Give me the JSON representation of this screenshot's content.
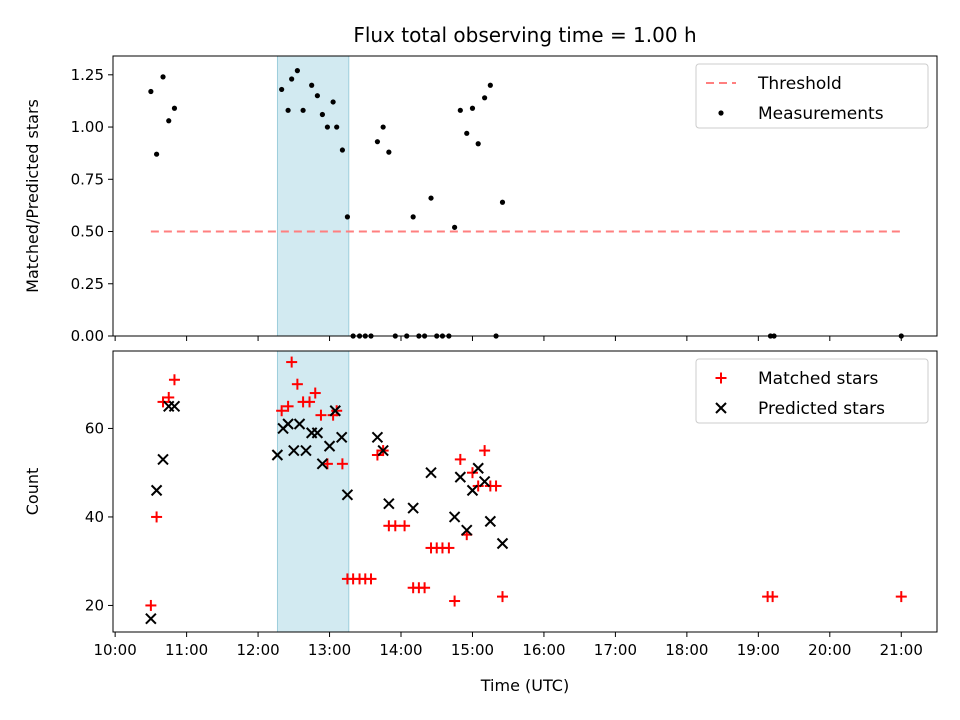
{
  "chart_data": {
    "type": "scatter",
    "title": "Flux total observing time = 1.00 h",
    "xlabel": "Time (UTC)",
    "x_tick_labels": [
      "10:00",
      "11:00",
      "12:00",
      "13:00",
      "14:00",
      "15:00",
      "16:00",
      "17:00",
      "18:00",
      "19:00",
      "20:00",
      "21:00"
    ],
    "x_ticks_hours": [
      10,
      11,
      12,
      13,
      14,
      15,
      16,
      17,
      18,
      19,
      20,
      21
    ],
    "xlim_hours": [
      9.97,
      21.5
    ],
    "highlight_span_hours": [
      12.27,
      13.27
    ],
    "colors": {
      "highlight": "#add8e6",
      "threshold": "#ff7f7f",
      "matched": "#ff0000",
      "predicted": "#000000",
      "measurement": "#000000"
    },
    "panels": [
      {
        "ylabel": "Matched/Predicted stars",
        "ylim": [
          0,
          1.34
        ],
        "y_ticks": [
          0,
          0.25,
          0.5,
          0.75,
          1.0,
          1.25
        ],
        "y_tick_labels": [
          "0.00",
          "0.25",
          "0.50",
          "0.75",
          "1.00",
          "1.25"
        ],
        "legend": {
          "placement": "top-right",
          "entries": [
            "Threshold",
            "Measurements"
          ]
        },
        "threshold": {
          "name": "Threshold",
          "x": [
            10.5,
            21.0
          ],
          "y": 0.5
        },
        "series": [
          {
            "name": "Measurements",
            "marker": "dot",
            "points": [
              [
                10.5,
                1.17
              ],
              [
                10.58,
                0.87
              ],
              [
                10.67,
                1.24
              ],
              [
                10.75,
                1.03
              ],
              [
                10.83,
                1.09
              ],
              [
                12.33,
                1.18
              ],
              [
                12.42,
                1.08
              ],
              [
                12.47,
                1.23
              ],
              [
                12.55,
                1.27
              ],
              [
                12.63,
                1.08
              ],
              [
                12.75,
                1.2
              ],
              [
                12.83,
                1.15
              ],
              [
                12.9,
                1.06
              ],
              [
                12.97,
                1.0
              ],
              [
                13.05,
                1.12
              ],
              [
                13.1,
                1.0
              ],
              [
                13.18,
                0.89
              ],
              [
                13.25,
                0.57
              ],
              [
                13.33,
                0
              ],
              [
                13.42,
                0
              ],
              [
                13.5,
                0
              ],
              [
                13.58,
                0
              ],
              [
                13.67,
                0.93
              ],
              [
                13.75,
                1.0
              ],
              [
                13.83,
                0.88
              ],
              [
                13.92,
                0
              ],
              [
                14.08,
                0
              ],
              [
                14.17,
                0.57
              ],
              [
                14.25,
                0
              ],
              [
                14.33,
                0
              ],
              [
                14.42,
                0.66
              ],
              [
                14.5,
                0
              ],
              [
                14.58,
                0
              ],
              [
                14.67,
                0
              ],
              [
                14.75,
                0.52
              ],
              [
                14.83,
                1.08
              ],
              [
                14.92,
                0.97
              ],
              [
                15.0,
                1.09
              ],
              [
                15.08,
                0.92
              ],
              [
                15.17,
                1.14
              ],
              [
                15.25,
                1.2
              ],
              [
                15.33,
                0
              ],
              [
                15.42,
                0.64
              ],
              [
                19.17,
                0
              ],
              [
                19.22,
                0
              ],
              [
                21.0,
                0
              ]
            ]
          }
        ]
      },
      {
        "ylabel": "Count",
        "ylim": [
          14,
          77.5
        ],
        "y_ticks": [
          20,
          40,
          60
        ],
        "y_tick_labels": [
          "20",
          "40",
          "60"
        ],
        "legend": {
          "placement": "top-right",
          "entries": [
            "Matched stars",
            "Predicted stars"
          ]
        },
        "series": [
          {
            "name": "Matched stars",
            "marker": "plus",
            "points": [
              [
                10.5,
                20
              ],
              [
                10.58,
                40
              ],
              [
                10.67,
                66
              ],
              [
                10.75,
                67
              ],
              [
                10.83,
                71
              ],
              [
                12.33,
                64
              ],
              [
                12.42,
                65
              ],
              [
                12.47,
                75
              ],
              [
                12.55,
                70
              ],
              [
                12.63,
                66
              ],
              [
                12.72,
                66
              ],
              [
                12.8,
                68
              ],
              [
                12.88,
                63
              ],
              [
                12.97,
                52
              ],
              [
                13.05,
                63
              ],
              [
                13.1,
                64
              ],
              [
                13.18,
                52
              ],
              [
                13.25,
                26
              ],
              [
                13.33,
                26
              ],
              [
                13.42,
                26
              ],
              [
                13.5,
                26
              ],
              [
                13.58,
                26
              ],
              [
                13.67,
                54
              ],
              [
                13.75,
                55
              ],
              [
                13.83,
                38
              ],
              [
                13.92,
                38
              ],
              [
                14.05,
                38
              ],
              [
                14.17,
                24
              ],
              [
                14.25,
                24
              ],
              [
                14.33,
                24
              ],
              [
                14.42,
                33
              ],
              [
                14.5,
                33
              ],
              [
                14.58,
                33
              ],
              [
                14.67,
                33
              ],
              [
                14.75,
                21
              ],
              [
                14.83,
                53
              ],
              [
                14.92,
                36
              ],
              [
                15.0,
                50
              ],
              [
                15.08,
                47
              ],
              [
                15.17,
                55
              ],
              [
                15.25,
                47
              ],
              [
                15.33,
                47
              ],
              [
                15.42,
                22
              ],
              [
                19.13,
                22
              ],
              [
                19.2,
                22
              ],
              [
                21.0,
                22
              ]
            ]
          },
          {
            "name": "Predicted stars",
            "marker": "x",
            "points": [
              [
                10.5,
                17
              ],
              [
                10.58,
                46
              ],
              [
                10.67,
                53
              ],
              [
                10.75,
                65
              ],
              [
                10.83,
                65
              ],
              [
                12.27,
                54
              ],
              [
                12.35,
                60
              ],
              [
                12.42,
                61
              ],
              [
                12.5,
                55
              ],
              [
                12.58,
                61
              ],
              [
                12.67,
                55
              ],
              [
                12.75,
                59
              ],
              [
                12.83,
                59
              ],
              [
                12.9,
                52
              ],
              [
                13.0,
                56
              ],
              [
                13.08,
                64
              ],
              [
                13.17,
                58
              ],
              [
                13.25,
                45
              ],
              [
                13.67,
                58
              ],
              [
                13.75,
                55
              ],
              [
                13.83,
                43
              ],
              [
                14.17,
                42
              ],
              [
                14.42,
                50
              ],
              [
                14.75,
                40
              ],
              [
                14.83,
                49
              ],
              [
                14.92,
                37
              ],
              [
                15.0,
                46
              ],
              [
                15.08,
                51
              ],
              [
                15.17,
                48
              ],
              [
                15.25,
                39
              ],
              [
                15.42,
                34
              ]
            ]
          }
        ]
      }
    ]
  }
}
